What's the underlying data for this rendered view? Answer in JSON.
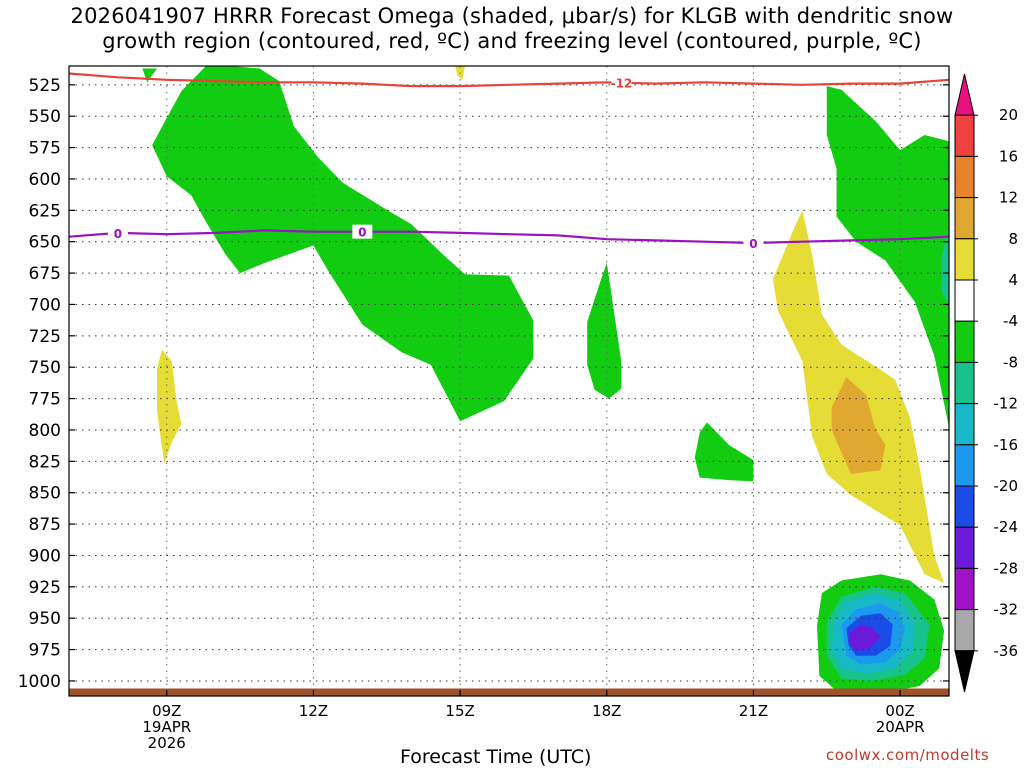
{
  "title": "2026041907 HRRR Forecast Omega (shaded, μbar/s) for KLGB with dendritic snow\ngrowth region (contoured, red, ºC) and freezing level (contoured, purple, ºC)",
  "credit": "coolwx.com/modelts",
  "chart_data": {
    "type": "time-height contour",
    "xlabel": "Forecast Time (UTC)",
    "ylabel": "",
    "y_axis": "pressure (mb), inverted",
    "ylim": [
      1012,
      510
    ],
    "y_ticks": [
      525,
      550,
      575,
      600,
      625,
      650,
      675,
      700,
      725,
      750,
      775,
      800,
      825,
      850,
      875,
      900,
      925,
      950,
      975,
      1000
    ],
    "x_ticks": [
      {
        "hour": 9,
        "lines": [
          "09Z",
          "19APR",
          "2026"
        ]
      },
      {
        "hour": 12,
        "lines": [
          "12Z"
        ]
      },
      {
        "hour": 15,
        "lines": [
          "15Z"
        ]
      },
      {
        "hour": 18,
        "lines": [
          "18Z"
        ]
      },
      {
        "hour": 21,
        "lines": [
          "21Z"
        ]
      },
      {
        "hour": 24,
        "lines": [
          "00Z",
          "20APR"
        ]
      }
    ],
    "xlim": [
      7,
      25
    ],
    "grid": "dotted",
    "colorbar": {
      "labels": [
        20,
        16,
        12,
        8,
        4,
        -4,
        -8,
        -12,
        -16,
        -20,
        -24,
        -28,
        -32,
        -36
      ],
      "colors": [
        "#e8117f",
        "#f04040",
        "#e8832b",
        "#e0a830",
        "#e5dc35",
        "#ffffff",
        "#11cc11",
        "#17c38a",
        "#17b8c8",
        "#1a99ee",
        "#1a4ce8",
        "#6a1ad8",
        "#a013c8",
        "#a8a8a8",
        "#000000"
      ]
    },
    "contour_lines": [
      {
        "name": "dendritic -12",
        "label": "-12",
        "color": "#e8423a",
        "points": [
          [
            7,
            516
          ],
          [
            8,
            519
          ],
          [
            9,
            521
          ],
          [
            10,
            522
          ],
          [
            11,
            523
          ],
          [
            12,
            523
          ],
          [
            13,
            524
          ],
          [
            14,
            526
          ],
          [
            15,
            526
          ],
          [
            16,
            525
          ],
          [
            17,
            524
          ],
          [
            18,
            523
          ],
          [
            19,
            524
          ],
          [
            20,
            523
          ],
          [
            21,
            524
          ],
          [
            22,
            525
          ],
          [
            23,
            524
          ],
          [
            24,
            524
          ],
          [
            25,
            521
          ]
        ]
      },
      {
        "name": "freezing level 0",
        "label": "0",
        "color": "#9b12c0",
        "points": [
          [
            7,
            646
          ],
          [
            8,
            643
          ],
          [
            9,
            644
          ],
          [
            10,
            643
          ],
          [
            11,
            641
          ],
          [
            12,
            642
          ],
          [
            13,
            642
          ],
          [
            14,
            642
          ],
          [
            15,
            643
          ],
          [
            16,
            644
          ],
          [
            17,
            645
          ],
          [
            18,
            648
          ],
          [
            19,
            649
          ],
          [
            20,
            650
          ],
          [
            21,
            651
          ],
          [
            22,
            650
          ],
          [
            23,
            649
          ],
          [
            24,
            648
          ],
          [
            25,
            646
          ]
        ]
      }
    ],
    "regions": [
      {
        "value": -6,
        "color": "#11cc11",
        "points": [
          [
            8.7,
            573
          ],
          [
            9.3,
            530
          ],
          [
            9.8,
            510
          ],
          [
            10.3,
            510
          ],
          [
            10.9,
            512
          ],
          [
            11.3,
            522
          ],
          [
            11.6,
            558
          ],
          [
            12.1,
            583
          ],
          [
            12.6,
            603
          ],
          [
            13.6,
            627
          ],
          [
            14.0,
            636
          ],
          [
            14.7,
            662
          ],
          [
            15.1,
            676
          ],
          [
            16.0,
            677
          ],
          [
            16.5,
            713
          ],
          [
            16.5,
            743
          ],
          [
            15.9,
            777
          ],
          [
            15.0,
            793
          ],
          [
            14.4,
            748
          ],
          [
            13.8,
            738
          ],
          [
            13.0,
            716
          ],
          [
            12.3,
            673
          ],
          [
            12.0,
            653
          ],
          [
            11.0,
            667
          ],
          [
            10.5,
            675
          ],
          [
            10.2,
            660
          ],
          [
            9.8,
            634
          ],
          [
            9.5,
            613
          ],
          [
            9.0,
            598
          ]
        ]
      },
      {
        "value": -6,
        "color": "#11cc11",
        "points": [
          [
            8.5,
            512
          ],
          [
            8.6,
            523
          ],
          [
            8.8,
            512
          ]
        ]
      },
      {
        "value": 6,
        "color": "#e5dc35",
        "points": [
          [
            14.9,
            510
          ],
          [
            15.1,
            510
          ],
          [
            15.05,
            521
          ],
          [
            14.95,
            518
          ]
        ]
      },
      {
        "value": 6,
        "color": "#e5dc35",
        "points": [
          [
            8.8,
            752
          ],
          [
            8.9,
            736
          ],
          [
            9.1,
            745
          ],
          [
            9.2,
            777
          ],
          [
            9.3,
            795
          ],
          [
            9.1,
            810
          ],
          [
            8.95,
            827
          ],
          [
            8.8,
            785
          ]
        ]
      },
      {
        "value": -6,
        "color": "#11cc11",
        "points": [
          [
            17.6,
            714
          ],
          [
            17.9,
            678
          ],
          [
            18.0,
            667
          ],
          [
            18.1,
            693
          ],
          [
            18.3,
            746
          ],
          [
            18.3,
            767
          ],
          [
            18.05,
            775
          ],
          [
            17.75,
            768
          ],
          [
            17.6,
            748
          ]
        ]
      },
      {
        "value": -6,
        "color": "#11cc11",
        "points": [
          [
            19.8,
            822
          ],
          [
            19.9,
            802
          ],
          [
            20.05,
            794
          ],
          [
            20.5,
            812
          ],
          [
            21.0,
            824
          ],
          [
            21.0,
            841
          ],
          [
            20.5,
            840
          ],
          [
            19.9,
            838
          ]
        ]
      },
      {
        "value": 6,
        "color": "#e5dc35",
        "points": [
          [
            21.4,
            680
          ],
          [
            21.8,
            642
          ],
          [
            22.0,
            625
          ],
          [
            22.2,
            660
          ],
          [
            22.4,
            708
          ],
          [
            22.8,
            732
          ],
          [
            23.6,
            752
          ],
          [
            23.9,
            760
          ],
          [
            24.2,
            790
          ],
          [
            24.4,
            830
          ],
          [
            24.7,
            900
          ],
          [
            24.9,
            922
          ],
          [
            24.5,
            915
          ],
          [
            24.0,
            876
          ],
          [
            23.0,
            852
          ],
          [
            22.5,
            835
          ],
          [
            22.2,
            805
          ],
          [
            22.0,
            745
          ],
          [
            21.5,
            705
          ]
        ]
      },
      {
        "value": 10,
        "color": "#e0a830",
        "points": [
          [
            22.6,
            782
          ],
          [
            22.9,
            758
          ],
          [
            23.3,
            772
          ],
          [
            23.5,
            800
          ],
          [
            23.7,
            812
          ],
          [
            23.6,
            832
          ],
          [
            23.0,
            835
          ],
          [
            22.8,
            818
          ],
          [
            22.6,
            800
          ]
        ]
      },
      {
        "value": -6,
        "color": "#11cc11",
        "points": [
          [
            22.5,
            526
          ],
          [
            22.8,
            529
          ],
          [
            23.5,
            554
          ],
          [
            24.0,
            577
          ],
          [
            24.5,
            565
          ],
          [
            25.0,
            570
          ],
          [
            25.0,
            798
          ],
          [
            24.7,
            741
          ],
          [
            24.3,
            698
          ],
          [
            23.7,
            665
          ],
          [
            23.1,
            650
          ],
          [
            22.7,
            630
          ],
          [
            22.7,
            592
          ],
          [
            22.5,
            565
          ]
        ]
      },
      {
        "value": -10,
        "color": "#17c38a",
        "points": [
          [
            24.85,
            663
          ],
          [
            25.0,
            637
          ],
          [
            25.0,
            700
          ],
          [
            24.85,
            690
          ]
        ]
      },
      {
        "value": -6,
        "color": "#11cc11",
        "points": [
          [
            22.3,
            956
          ],
          [
            22.4,
            930
          ],
          [
            22.8,
            920
          ],
          [
            23.6,
            915
          ],
          [
            24.2,
            920
          ],
          [
            24.7,
            935
          ],
          [
            24.9,
            960
          ],
          [
            24.8,
            990
          ],
          [
            24.4,
            1004
          ],
          [
            23.6,
            1010
          ],
          [
            22.7,
            1008
          ],
          [
            22.35,
            996
          ]
        ]
      },
      {
        "value": -10,
        "color": "#17c38a",
        "points": [
          [
            22.5,
            953
          ],
          [
            22.8,
            933
          ],
          [
            23.5,
            925
          ],
          [
            24.1,
            930
          ],
          [
            24.6,
            955
          ],
          [
            24.5,
            982
          ],
          [
            24.1,
            995
          ],
          [
            23.4,
            1000
          ],
          [
            22.8,
            998
          ],
          [
            22.5,
            980
          ]
        ]
      },
      {
        "value": -14,
        "color": "#17b8c8",
        "points": [
          [
            22.65,
            953
          ],
          [
            22.9,
            937
          ],
          [
            23.5,
            930
          ],
          [
            24.0,
            936
          ],
          [
            24.3,
            953
          ],
          [
            24.25,
            976
          ],
          [
            23.9,
            990
          ],
          [
            23.3,
            994
          ],
          [
            22.8,
            990
          ],
          [
            22.6,
            975
          ]
        ]
      },
      {
        "value": -18,
        "color": "#1a99ee",
        "points": [
          [
            22.8,
            955
          ],
          [
            23.1,
            943
          ],
          [
            23.6,
            938
          ],
          [
            23.95,
            945
          ],
          [
            24.1,
            958
          ],
          [
            24.0,
            975
          ],
          [
            23.7,
            985
          ],
          [
            23.2,
            987
          ],
          [
            22.9,
            980
          ]
        ]
      },
      {
        "value": -22,
        "color": "#1a4ce8",
        "points": [
          [
            22.9,
            958
          ],
          [
            23.2,
            948
          ],
          [
            23.6,
            946
          ],
          [
            23.85,
            955
          ],
          [
            23.8,
            972
          ],
          [
            23.5,
            980
          ],
          [
            23.1,
            980
          ],
          [
            22.95,
            972
          ]
        ]
      },
      {
        "value": -26,
        "color": "#6a1ad8",
        "points": [
          [
            22.95,
            962
          ],
          [
            23.2,
            955
          ],
          [
            23.45,
            958
          ],
          [
            23.6,
            965
          ],
          [
            23.4,
            974
          ],
          [
            23.1,
            976
          ],
          [
            22.95,
            970
          ]
        ]
      }
    ],
    "terrain": {
      "color": "#a0522d",
      "top_pressure": 1006
    }
  }
}
